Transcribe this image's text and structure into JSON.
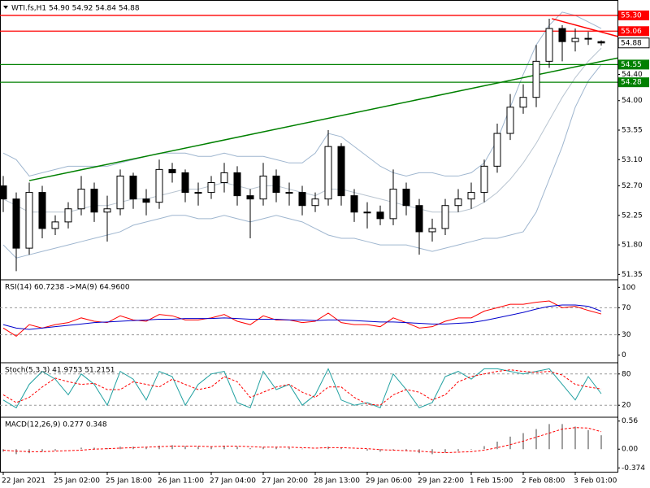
{
  "chart_data": [
    {
      "type": "candlestick",
      "label": "WTI.fs,H1  54.90 54.92 54.84 54.88",
      "categories": [
        "22 Jan 2021",
        null,
        null,
        null,
        "25 Jan 02:00",
        null,
        null,
        null,
        "25 Jan 18:00",
        null,
        null,
        null,
        "26 Jan 11:00",
        null,
        null,
        null,
        "27 Jan 04:00",
        null,
        null,
        null,
        "27 Jan 20:00",
        null,
        null,
        null,
        "28 Jan 13:00",
        null,
        null,
        null,
        "29 Jan 06:00",
        null,
        null,
        null,
        "29 Jan 22:00",
        null,
        null,
        null,
        "1 Feb 15:00",
        null,
        null,
        null,
        "2 Feb 08:00",
        null,
        null,
        null,
        "3 Feb 01:00",
        null,
        null
      ],
      "open": [
        52.7,
        52.5,
        51.75,
        52.6,
        52.05,
        52.15,
        52.35,
        52.65,
        52.3,
        52.35,
        52.85,
        52.5,
        52.45,
        52.95,
        52.9,
        52.6,
        52.6,
        52.75,
        52.9,
        52.55,
        52.5,
        52.85,
        52.6,
        52.6,
        52.4,
        52.5,
        53.3,
        52.55,
        52.3,
        52.3,
        52.2,
        52.65,
        52.4,
        52.0,
        52.05,
        52.4,
        52.5,
        52.6,
        53.0,
        53.5,
        53.9,
        54.05,
        54.6,
        55.1,
        54.9,
        54.95,
        54.9
      ],
      "high": [
        52.85,
        52.6,
        52.75,
        52.7,
        52.25,
        52.45,
        52.85,
        52.75,
        52.55,
        52.95,
        52.9,
        52.65,
        53.1,
        53.05,
        52.95,
        52.75,
        52.85,
        53.05,
        53.0,
        52.65,
        53.05,
        52.95,
        52.75,
        52.7,
        52.6,
        53.55,
        53.35,
        52.65,
        52.45,
        52.4,
        52.95,
        52.75,
        52.5,
        52.2,
        52.5,
        52.65,
        52.75,
        53.1,
        53.65,
        54.1,
        54.25,
        54.85,
        55.25,
        55.15,
        55.1,
        55.05,
        54.92
      ],
      "low": [
        52.3,
        51.4,
        51.65,
        51.9,
        51.95,
        52.05,
        52.25,
        52.15,
        51.85,
        52.25,
        52.35,
        52.25,
        52.35,
        52.75,
        52.45,
        52.4,
        52.5,
        52.6,
        52.4,
        51.9,
        52.4,
        52.45,
        52.4,
        52.25,
        52.3,
        52.4,
        52.4,
        52.15,
        52.05,
        52.1,
        52.1,
        52.25,
        51.65,
        51.85,
        51.95,
        52.3,
        52.35,
        52.45,
        52.9,
        53.4,
        53.8,
        53.9,
        54.5,
        54.6,
        54.75,
        54.85,
        54.84
      ],
      "close": [
        52.5,
        51.75,
        52.6,
        52.05,
        52.15,
        52.35,
        52.65,
        52.3,
        52.35,
        52.85,
        52.5,
        52.45,
        52.95,
        52.9,
        52.6,
        52.6,
        52.75,
        52.9,
        52.55,
        52.5,
        52.85,
        52.6,
        52.6,
        52.4,
        52.5,
        53.3,
        52.55,
        52.3,
        52.3,
        52.2,
        52.65,
        52.4,
        52.0,
        52.05,
        52.4,
        52.5,
        52.6,
        53.0,
        53.5,
        53.9,
        54.05,
        54.6,
        55.1,
        54.9,
        54.95,
        54.95,
        54.88
      ],
      "bull_color": "#ffffff",
      "bear_color": "#000000",
      "wick_color": "#000000",
      "bands": [
        {
          "color": "#9fb6cf",
          "values": [
            53.2,
            53.1,
            52.85,
            52.9,
            52.95,
            53.0,
            53.0,
            53.0,
            53.0,
            53.05,
            53.1,
            53.15,
            53.2,
            53.2,
            53.2,
            53.15,
            53.15,
            53.2,
            53.15,
            53.15,
            53.15,
            53.1,
            53.05,
            53.05,
            53.2,
            53.5,
            53.45,
            53.3,
            53.15,
            53.0,
            52.9,
            52.85,
            52.9,
            52.9,
            52.85,
            52.85,
            52.9,
            53.05,
            53.4,
            53.9,
            54.4,
            54.85,
            55.15,
            55.35,
            55.3,
            55.2,
            55.1
          ]
        },
        {
          "color": "#b8c4d0",
          "values": [
            52.5,
            52.4,
            52.3,
            52.3,
            52.3,
            52.3,
            52.35,
            52.4,
            52.4,
            52.45,
            52.5,
            52.5,
            52.55,
            52.6,
            52.65,
            52.65,
            52.7,
            52.75,
            52.7,
            52.65,
            52.7,
            52.7,
            52.65,
            52.6,
            52.55,
            52.65,
            52.65,
            52.6,
            52.55,
            52.5,
            52.45,
            52.4,
            52.35,
            52.3,
            52.3,
            52.3,
            52.35,
            52.45,
            52.6,
            52.8,
            53.05,
            53.35,
            53.7,
            54.05,
            54.35,
            54.6,
            54.8
          ]
        },
        {
          "color": "#9fb6cf",
          "values": [
            51.8,
            51.6,
            51.65,
            51.7,
            51.75,
            51.8,
            51.85,
            51.9,
            51.95,
            52.0,
            52.1,
            52.15,
            52.2,
            52.25,
            52.25,
            52.2,
            52.2,
            52.25,
            52.2,
            52.15,
            52.2,
            52.25,
            52.2,
            52.15,
            52.05,
            51.95,
            51.9,
            51.9,
            51.85,
            51.8,
            51.8,
            51.8,
            51.75,
            51.7,
            51.75,
            51.8,
            51.85,
            51.9,
            51.9,
            51.95,
            52.0,
            52.3,
            52.8,
            53.3,
            53.9,
            54.3,
            54.55
          ]
        }
      ],
      "levels": [
        {
          "value": 55.3,
          "label": "55.30",
          "color": "#ff0000"
        },
        {
          "value": 55.06,
          "label": "55.06",
          "color": "#ff0000"
        },
        {
          "value": 54.55,
          "label": "54.55",
          "color": "#008000"
        },
        {
          "value": 54.28,
          "label": "54.28",
          "color": "#008000"
        }
      ],
      "trendlines": [
        {
          "color": "#008000",
          "points": [
            [
              2,
              52.78
            ],
            [
              47.25,
              54.65
            ]
          ]
        },
        {
          "color": "#ff0000",
          "points": [
            [
              42.2,
              55.25
            ],
            [
              47.25,
              54.98
            ]
          ]
        }
      ],
      "ylim": [
        51.28,
        55.51
      ],
      "yticks": [
        51.35,
        {
          "value": 51.8,
          "label": "51.80"
        },
        52.25,
        {
          "value": 52.7,
          "label": "52.70"
        },
        {
          "value": 53.1,
          "label": "53.10"
        },
        53.55,
        {
          "value": 54.0,
          "label": "54.00"
        },
        {
          "value": 54.4,
          "label": "54.40"
        }
      ]
    },
    {
      "type": "line",
      "label": "RSI(14) 60.7238  ->MA(9) 64.9600",
      "series": [
        {
          "color": "#ff0000",
          "dashed": false,
          "values": [
            40,
            28,
            45,
            40,
            45,
            48,
            55,
            50,
            48,
            58,
            52,
            50,
            60,
            58,
            52,
            52,
            55,
            60,
            50,
            45,
            58,
            52,
            52,
            48,
            50,
            62,
            48,
            45,
            45,
            42,
            55,
            48,
            40,
            42,
            50,
            55,
            55,
            65,
            70,
            75,
            75,
            78,
            80,
            70,
            72,
            66,
            60.72
          ]
        },
        {
          "color": "#0000cc",
          "dashed": false,
          "values": [
            45,
            40,
            38,
            40,
            42,
            44,
            46,
            48,
            49,
            50,
            51,
            52,
            53,
            53,
            54,
            54,
            54,
            55,
            54,
            53,
            53,
            53,
            52,
            52,
            51,
            52,
            52,
            51,
            50,
            49,
            49,
            48,
            47,
            46,
            46,
            47,
            48,
            51,
            55,
            59,
            63,
            68,
            72,
            74,
            74,
            72,
            64.96
          ]
        }
      ],
      "ylim": [
        -10,
        110
      ],
      "yticks": [
        0,
        30,
        70,
        100
      ],
      "levels": [
        30,
        70
      ]
    },
    {
      "type": "line",
      "label": "Stoch(5,3,3) 41.9753 51.2151",
      "series": [
        {
          "color": "#20a0a0",
          "dashed": false,
          "values": [
            30,
            15,
            60,
            85,
            70,
            40,
            80,
            60,
            20,
            85,
            70,
            30,
            85,
            75,
            20,
            60,
            80,
            85,
            25,
            15,
            85,
            50,
            60,
            20,
            40,
            90,
            30,
            20,
            25,
            15,
            80,
            50,
            15,
            25,
            75,
            85,
            70,
            90,
            90,
            85,
            80,
            85,
            90,
            60,
            30,
            75,
            41.98
          ]
        },
        {
          "color": "#ff0000",
          "dashed": true,
          "values": [
            40,
            25,
            35,
            55,
            72,
            65,
            60,
            62,
            50,
            50,
            65,
            60,
            55,
            70,
            60,
            50,
            55,
            75,
            65,
            35,
            45,
            55,
            60,
            45,
            35,
            55,
            55,
            35,
            22,
            20,
            40,
            50,
            45,
            30,
            40,
            65,
            75,
            80,
            85,
            88,
            85,
            83,
            85,
            78,
            60,
            55,
            51.22
          ]
        }
      ],
      "ylim": [
        0,
        100
      ],
      "yticks": [
        20,
        80
      ],
      "levels": [
        20,
        80
      ]
    },
    {
      "type": "macd",
      "label": "MACD(12,26,9) 0.277 0.348",
      "values": [
        -0.05,
        -0.1,
        -0.08,
        -0.05,
        -0.03,
        0.0,
        0.03,
        0.03,
        0.02,
        0.05,
        0.05,
        0.04,
        0.07,
        0.08,
        0.06,
        0.05,
        0.05,
        0.07,
        0.05,
        0.02,
        0.04,
        0.04,
        0.03,
        0.01,
        0.0,
        0.05,
        0.03,
        0.0,
        -0.03,
        -0.05,
        -0.02,
        -0.03,
        -0.08,
        -0.1,
        -0.07,
        -0.04,
        -0.01,
        0.06,
        0.15,
        0.25,
        0.32,
        0.4,
        0.5,
        0.5,
        0.45,
        0.38,
        0.277
      ],
      "color": "#a0a0a0",
      "signal": {
        "color": "#ff0000",
        "dashed": true,
        "values": [
          -0.02,
          -0.04,
          -0.05,
          -0.05,
          -0.04,
          -0.03,
          -0.02,
          0.0,
          0.01,
          0.02,
          0.03,
          0.04,
          0.05,
          0.06,
          0.06,
          0.06,
          0.05,
          0.06,
          0.06,
          0.05,
          0.04,
          0.04,
          0.04,
          0.03,
          0.02,
          0.03,
          0.03,
          0.02,
          0.01,
          -0.01,
          -0.02,
          -0.03,
          -0.04,
          -0.06,
          -0.07,
          -0.06,
          -0.05,
          -0.02,
          0.03,
          0.09,
          0.16,
          0.24,
          0.32,
          0.4,
          0.43,
          0.42,
          0.348
        ]
      },
      "ylim": [
        -0.45,
        0.62
      ],
      "yticks": [
        {
          "value": -0.374,
          "label": "-0.374"
        },
        {
          "value": 0,
          "label": "0.00"
        },
        0.56
      ]
    }
  ]
}
